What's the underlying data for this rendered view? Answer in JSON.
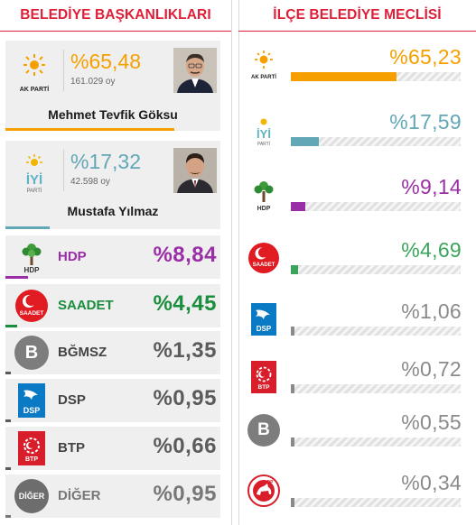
{
  "left": {
    "title": "BELEDİYE BAŞKANLIKLARI",
    "candidates": [
      {
        "party": "AK PARTİ",
        "pct": "%65,48",
        "votes": "161.029 oy",
        "name": "Mehmet Tevfik Göksu",
        "color": "#f5a000",
        "share": 0.6548,
        "icon": "ak-parti-logo"
      },
      {
        "party": "İYİ PARTİ",
        "pct": "%17,32",
        "votes": "42.598 oy",
        "name": "Mustafa Yılmaz",
        "color": "#62a7b6",
        "share": 0.1732,
        "icon": "iyi-parti-logo"
      }
    ],
    "rows": [
      {
        "label": "HDP",
        "pct": "%8,84",
        "color": "#9a2ea6",
        "share": 0.0884,
        "icon": "hdp-logo"
      },
      {
        "label": "SAADET",
        "pct": "%4,45",
        "color": "#1a8e3c",
        "share": 0.0445,
        "icon": "saadet-logo"
      },
      {
        "label": "BĞMSZ",
        "pct": "%1,35",
        "color": "#5b5b5b",
        "share": 0.0135,
        "icon": "bagimsiz-logo"
      },
      {
        "label": "DSP",
        "pct": "%0,95",
        "color": "#5b5b5b",
        "share": 0.0095,
        "icon": "dsp-logo"
      },
      {
        "label": "BTP",
        "pct": "%0,66",
        "color": "#5b5b5b",
        "share": 0.0066,
        "icon": "btp-logo"
      },
      {
        "label": "DİĞER",
        "pct": "%0,95",
        "color": "#777777",
        "share": 0.0095,
        "icon": "diger-logo"
      }
    ]
  },
  "right": {
    "title": "İLÇE BELEDİYE MECLİSİ",
    "rows": [
      {
        "pct": "%65,23",
        "color": "#f5a000",
        "share": 0.6523,
        "icon": "ak-parti-logo",
        "logo_text": "AK PARTİ"
      },
      {
        "pct": "%17,59",
        "color": "#62a7b6",
        "share": 0.1759,
        "icon": "iyi-parti-logo",
        "logo_text": "İYİ PARTİ"
      },
      {
        "pct": "%9,14",
        "color": "#9a2ea6",
        "share": 0.0914,
        "icon": "hdp-logo",
        "logo_text": "HDP"
      },
      {
        "pct": "%4,69",
        "color": "#3aa55a",
        "share": 0.0469,
        "icon": "saadet-logo",
        "logo_text": "SAADET"
      },
      {
        "pct": "%1,06",
        "color": "#8a8a8a",
        "share": 0.0106,
        "icon": "dsp-logo",
        "logo_text": "DSP"
      },
      {
        "pct": "%0,72",
        "color": "#8a8a8a",
        "share": 0.0072,
        "icon": "btp-logo",
        "logo_text": "BTP"
      },
      {
        "pct": "%0,55",
        "color": "#8a8a8a",
        "share": 0.0055,
        "icon": "bagimsiz-logo",
        "logo_text": "B"
      },
      {
        "pct": "%0,34",
        "color": "#8a8a8a",
        "share": 0.0034,
        "icon": "dp-logo",
        "logo_text": "DP"
      }
    ]
  }
}
